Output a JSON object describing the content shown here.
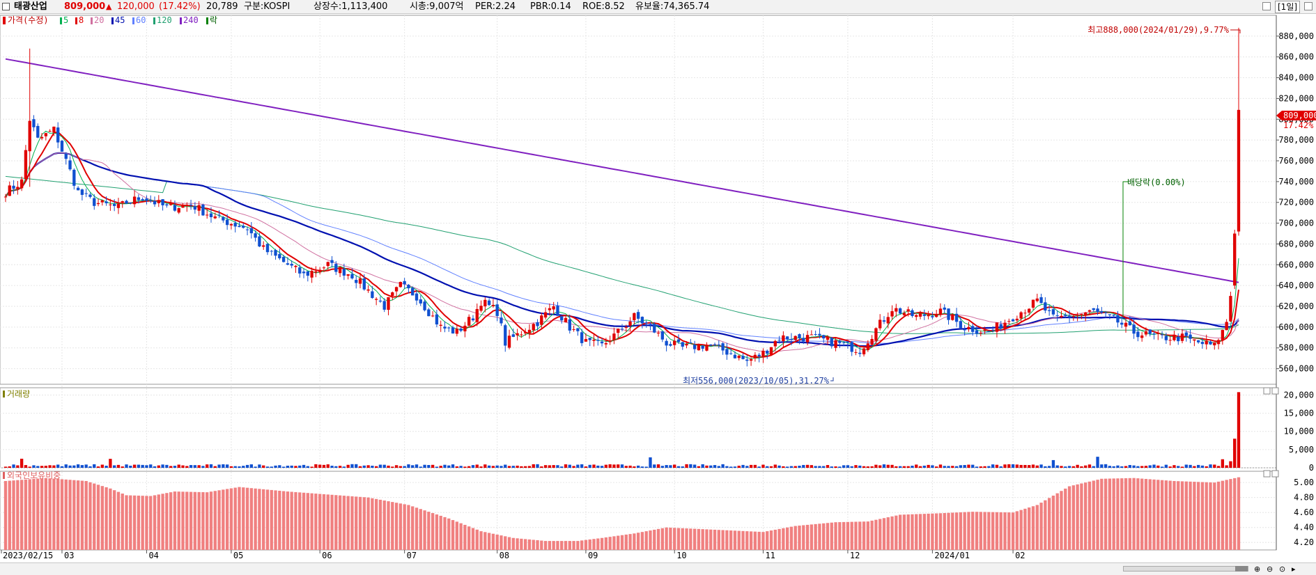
{
  "header": {
    "name": "태광산업",
    "price": "809,000",
    "change_arrow": "▲",
    "change": "120,000",
    "change_pct": "(17.42%)",
    "volume": "20,789",
    "market": "구분:KOSPI",
    "shares": "상장수:1,113,400",
    "mktcap": "시총:9,007억",
    "per": "PER:2.24",
    "pbr": "PBR:0.14",
    "roe": "ROE:8.52",
    "float": "유보율:74,365.74",
    "period_btn": "[1일]"
  },
  "legend": {
    "price_label": "가격(수정)",
    "ma": [
      {
        "label": "5",
        "color": "#00b050"
      },
      {
        "label": "8",
        "color": "#e00000"
      },
      {
        "label": "20",
        "color": "#d070a0"
      },
      {
        "label": "45",
        "color": "#0010b0"
      },
      {
        "label": "60",
        "color": "#6080ff"
      },
      {
        "label": "120",
        "color": "#20a070"
      },
      {
        "label": "240",
        "color": "#8020c0"
      }
    ],
    "ex_label": "락"
  },
  "annotations": {
    "high": "최고888,000(2024/01/29),9.77%",
    "low": "최저556,000(2023/10/05),31.27%",
    "dividend": "배당락(0.00%)",
    "price_tag": "809,000",
    "pct_tag": "17.42%"
  },
  "volume_panel": {
    "title": "거래량"
  },
  "foreign_panel": {
    "title": "외국인보유비중"
  },
  "chart_data": [
    {
      "type": "candlestick",
      "title": "",
      "y_ticks": [
        560000,
        580000,
        600000,
        620000,
        640000,
        660000,
        680000,
        700000,
        720000,
        740000,
        760000,
        780000,
        800000,
        820000,
        840000,
        860000,
        880000
      ],
      "ylim": [
        545000,
        900000
      ],
      "x_ticks": [
        "2023/02/15",
        "03",
        "04",
        "05",
        "06",
        "07",
        "08",
        "09",
        "10",
        "11",
        "12",
        "2024/01",
        "02"
      ],
      "high": {
        "value": 888000,
        "date": "2024/01/29"
      },
      "low": {
        "value": 556000,
        "date": "2023/10/05"
      },
      "last_close": 809000,
      "waypoints_close": [
        [
          0,
          730000
        ],
        [
          4,
          740000
        ],
        [
          6,
          800000
        ],
        [
          8,
          780000
        ],
        [
          12,
          790000
        ],
        [
          14,
          770000
        ],
        [
          18,
          730000
        ],
        [
          22,
          720000
        ],
        [
          28,
          715000
        ],
        [
          30,
          720000
        ],
        [
          34,
          725000
        ],
        [
          40,
          715000
        ],
        [
          46,
          718000
        ],
        [
          52,
          705000
        ],
        [
          56,
          700000
        ],
        [
          60,
          695000
        ],
        [
          64,
          675000
        ],
        [
          70,
          660000
        ],
        [
          74,
          650000
        ],
        [
          80,
          660000
        ],
        [
          86,
          650000
        ],
        [
          90,
          635000
        ],
        [
          94,
          620000
        ],
        [
          98,
          640000
        ],
        [
          102,
          630000
        ],
        [
          108,
          600000
        ],
        [
          112,
          595000
        ],
        [
          116,
          610000
        ],
        [
          118,
          625000
        ],
        [
          122,
          615000
        ],
        [
          124,
          585000
        ],
        [
          128,
          595000
        ],
        [
          132,
          605000
        ],
        [
          136,
          620000
        ],
        [
          140,
          600000
        ],
        [
          144,
          585000
        ],
        [
          148,
          582000
        ],
        [
          152,
          595000
        ],
        [
          156,
          610000
        ],
        [
          160,
          600000
        ],
        [
          164,
          585000
        ],
        [
          168,
          580000
        ],
        [
          174,
          583000
        ],
        [
          180,
          575000
        ],
        [
          184,
          567000
        ],
        [
          188,
          575000
        ],
        [
          192,
          590000
        ],
        [
          200,
          590000
        ],
        [
          206,
          585000
        ],
        [
          212,
          578000
        ],
        [
          216,
          598000
        ],
        [
          220,
          618000
        ],
        [
          226,
          610000
        ],
        [
          232,
          615000
        ],
        [
          238,
          600000
        ],
        [
          244,
          595000
        ],
        [
          250,
          610000
        ],
        [
          256,
          625000
        ],
        [
          260,
          608000
        ],
        [
          266,
          612000
        ],
        [
          270,
          615000
        ],
        [
          276,
          605000
        ],
        [
          280,
          595000
        ],
        [
          286,
          590000
        ],
        [
          292,
          590000
        ],
        [
          296,
          585000
        ],
        [
          300,
          582000
        ],
        [
          303,
          605000
        ],
        [
          304,
          630000
        ],
        [
          305,
          690000
        ],
        [
          306,
          809000
        ]
      ],
      "ma_lines": [
        "ma5",
        "ma8",
        "ma20",
        "ma45",
        "ma60",
        "ma120",
        "ma240"
      ]
    },
    {
      "type": "bar",
      "title": "",
      "y_ticks": [
        0,
        5000,
        10000,
        15000,
        20000
      ],
      "ylim": [
        0,
        22000
      ],
      "last_values": [
        1800,
        8000,
        20789
      ]
    },
    {
      "type": "bar",
      "title": "",
      "y_ticks": [
        4.2,
        4.4,
        4.6,
        4.8,
        5.0
      ],
      "ylim": [
        4.1,
        5.15
      ],
      "waypoints": [
        [
          0,
          5.02
        ],
        [
          10,
          5.06
        ],
        [
          20,
          5.02
        ],
        [
          26,
          4.92
        ],
        [
          30,
          4.83
        ],
        [
          36,
          4.82
        ],
        [
          42,
          4.88
        ],
        [
          50,
          4.87
        ],
        [
          58,
          4.94
        ],
        [
          70,
          4.88
        ],
        [
          80,
          4.84
        ],
        [
          90,
          4.8
        ],
        [
          100,
          4.7
        ],
        [
          110,
          4.52
        ],
        [
          118,
          4.35
        ],
        [
          126,
          4.26
        ],
        [
          134,
          4.22
        ],
        [
          142,
          4.22
        ],
        [
          148,
          4.26
        ],
        [
          156,
          4.32
        ],
        [
          164,
          4.4
        ],
        [
          172,
          4.38
        ],
        [
          180,
          4.36
        ],
        [
          188,
          4.34
        ],
        [
          196,
          4.42
        ],
        [
          206,
          4.47
        ],
        [
          214,
          4.48
        ],
        [
          222,
          4.57
        ],
        [
          232,
          4.59
        ],
        [
          240,
          4.61
        ],
        [
          250,
          4.6
        ],
        [
          256,
          4.7
        ],
        [
          264,
          4.95
        ],
        [
          272,
          5.05
        ],
        [
          280,
          5.06
        ],
        [
          290,
          5.02
        ],
        [
          300,
          5.0
        ],
        [
          306,
          5.07
        ]
      ]
    }
  ]
}
